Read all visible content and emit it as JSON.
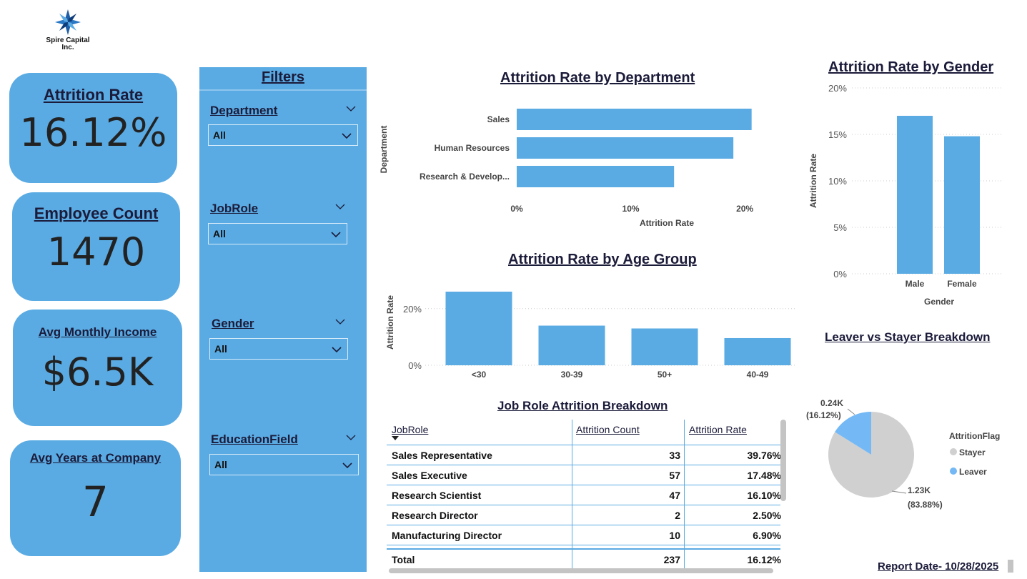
{
  "company": {
    "name_line1": "Spire Capital",
    "name_line2": "Inc."
  },
  "kpis": [
    {
      "title": "Attrition Rate",
      "value": "16.12%"
    },
    {
      "title": "Employee Count",
      "value": "1470"
    },
    {
      "title": "Avg Monthly Income",
      "value": "$6.5K"
    },
    {
      "title": "Avg Years at Company",
      "value": "7"
    }
  ],
  "filters": {
    "title": "Filters",
    "items": [
      {
        "label": "Department",
        "value": "All"
      },
      {
        "label": "JobRole",
        "value": "All"
      },
      {
        "label": "Gender",
        "value": "All"
      },
      {
        "label": "EducationField",
        "value": "All"
      }
    ]
  },
  "colors": {
    "accent": "#5aabe3",
    "leaver": "#74b9f5",
    "stayer": "#d0d0d0"
  },
  "chart_data": [
    {
      "type": "bar",
      "orientation": "horizontal",
      "title": "Attrition Rate by Department",
      "xlabel": "Attrition Rate",
      "ylabel": "Department",
      "categories": [
        "Sales",
        "Human Resources",
        "Research & Develop..."
      ],
      "values": [
        20.6,
        19.0,
        13.8
      ],
      "xticks": [
        "0%",
        "10%",
        "20%"
      ],
      "xlim": [
        0,
        22
      ]
    },
    {
      "type": "bar",
      "title": "Attrition Rate by Age Group",
      "xlabel": "",
      "ylabel": "Attrition Rate",
      "categories": [
        "<30",
        "30-39",
        "50+",
        "40-49"
      ],
      "values": [
        26.0,
        14.0,
        13.0,
        9.6
      ],
      "yticks": [
        "0%",
        "20%"
      ],
      "ylim": [
        0,
        26
      ]
    },
    {
      "type": "bar",
      "title": "Attrition Rate by Gender",
      "xlabel": "Gender",
      "ylabel": "Attrition Rate",
      "categories": [
        "Male",
        "Female"
      ],
      "values": [
        17.0,
        14.8
      ],
      "yticks": [
        "0%",
        "5%",
        "10%",
        "15%",
        "20%"
      ],
      "ylim": [
        0,
        20
      ]
    },
    {
      "type": "pie",
      "title": "Leaver vs Stayer Breakdown",
      "legend_title": "AttritionFlag",
      "legend_placement": "right",
      "slices": [
        {
          "name": "Stayer",
          "value": 1233,
          "label": "1.23K",
          "pct": "(83.88%)"
        },
        {
          "name": "Leaver",
          "value": 237,
          "label": "0.24K",
          "pct": "(16.12%)"
        }
      ]
    },
    {
      "type": "table",
      "title": "Job Role Attrition Breakdown",
      "columns": [
        "JobRole",
        "Attrition Count",
        "Attrition Rate"
      ],
      "rows": [
        [
          "Sales Representative",
          "33",
          "39.76%"
        ],
        [
          "Sales Executive",
          "57",
          "17.48%"
        ],
        [
          "Research Scientist",
          "47",
          "16.10%"
        ],
        [
          "Research Director",
          "2",
          "2.50%"
        ],
        [
          "Manufacturing Director",
          "10",
          "6.90%"
        ]
      ],
      "total": [
        "Total",
        "237",
        "16.12%"
      ]
    }
  ],
  "report_date": "Report Date- 10/28/2025"
}
